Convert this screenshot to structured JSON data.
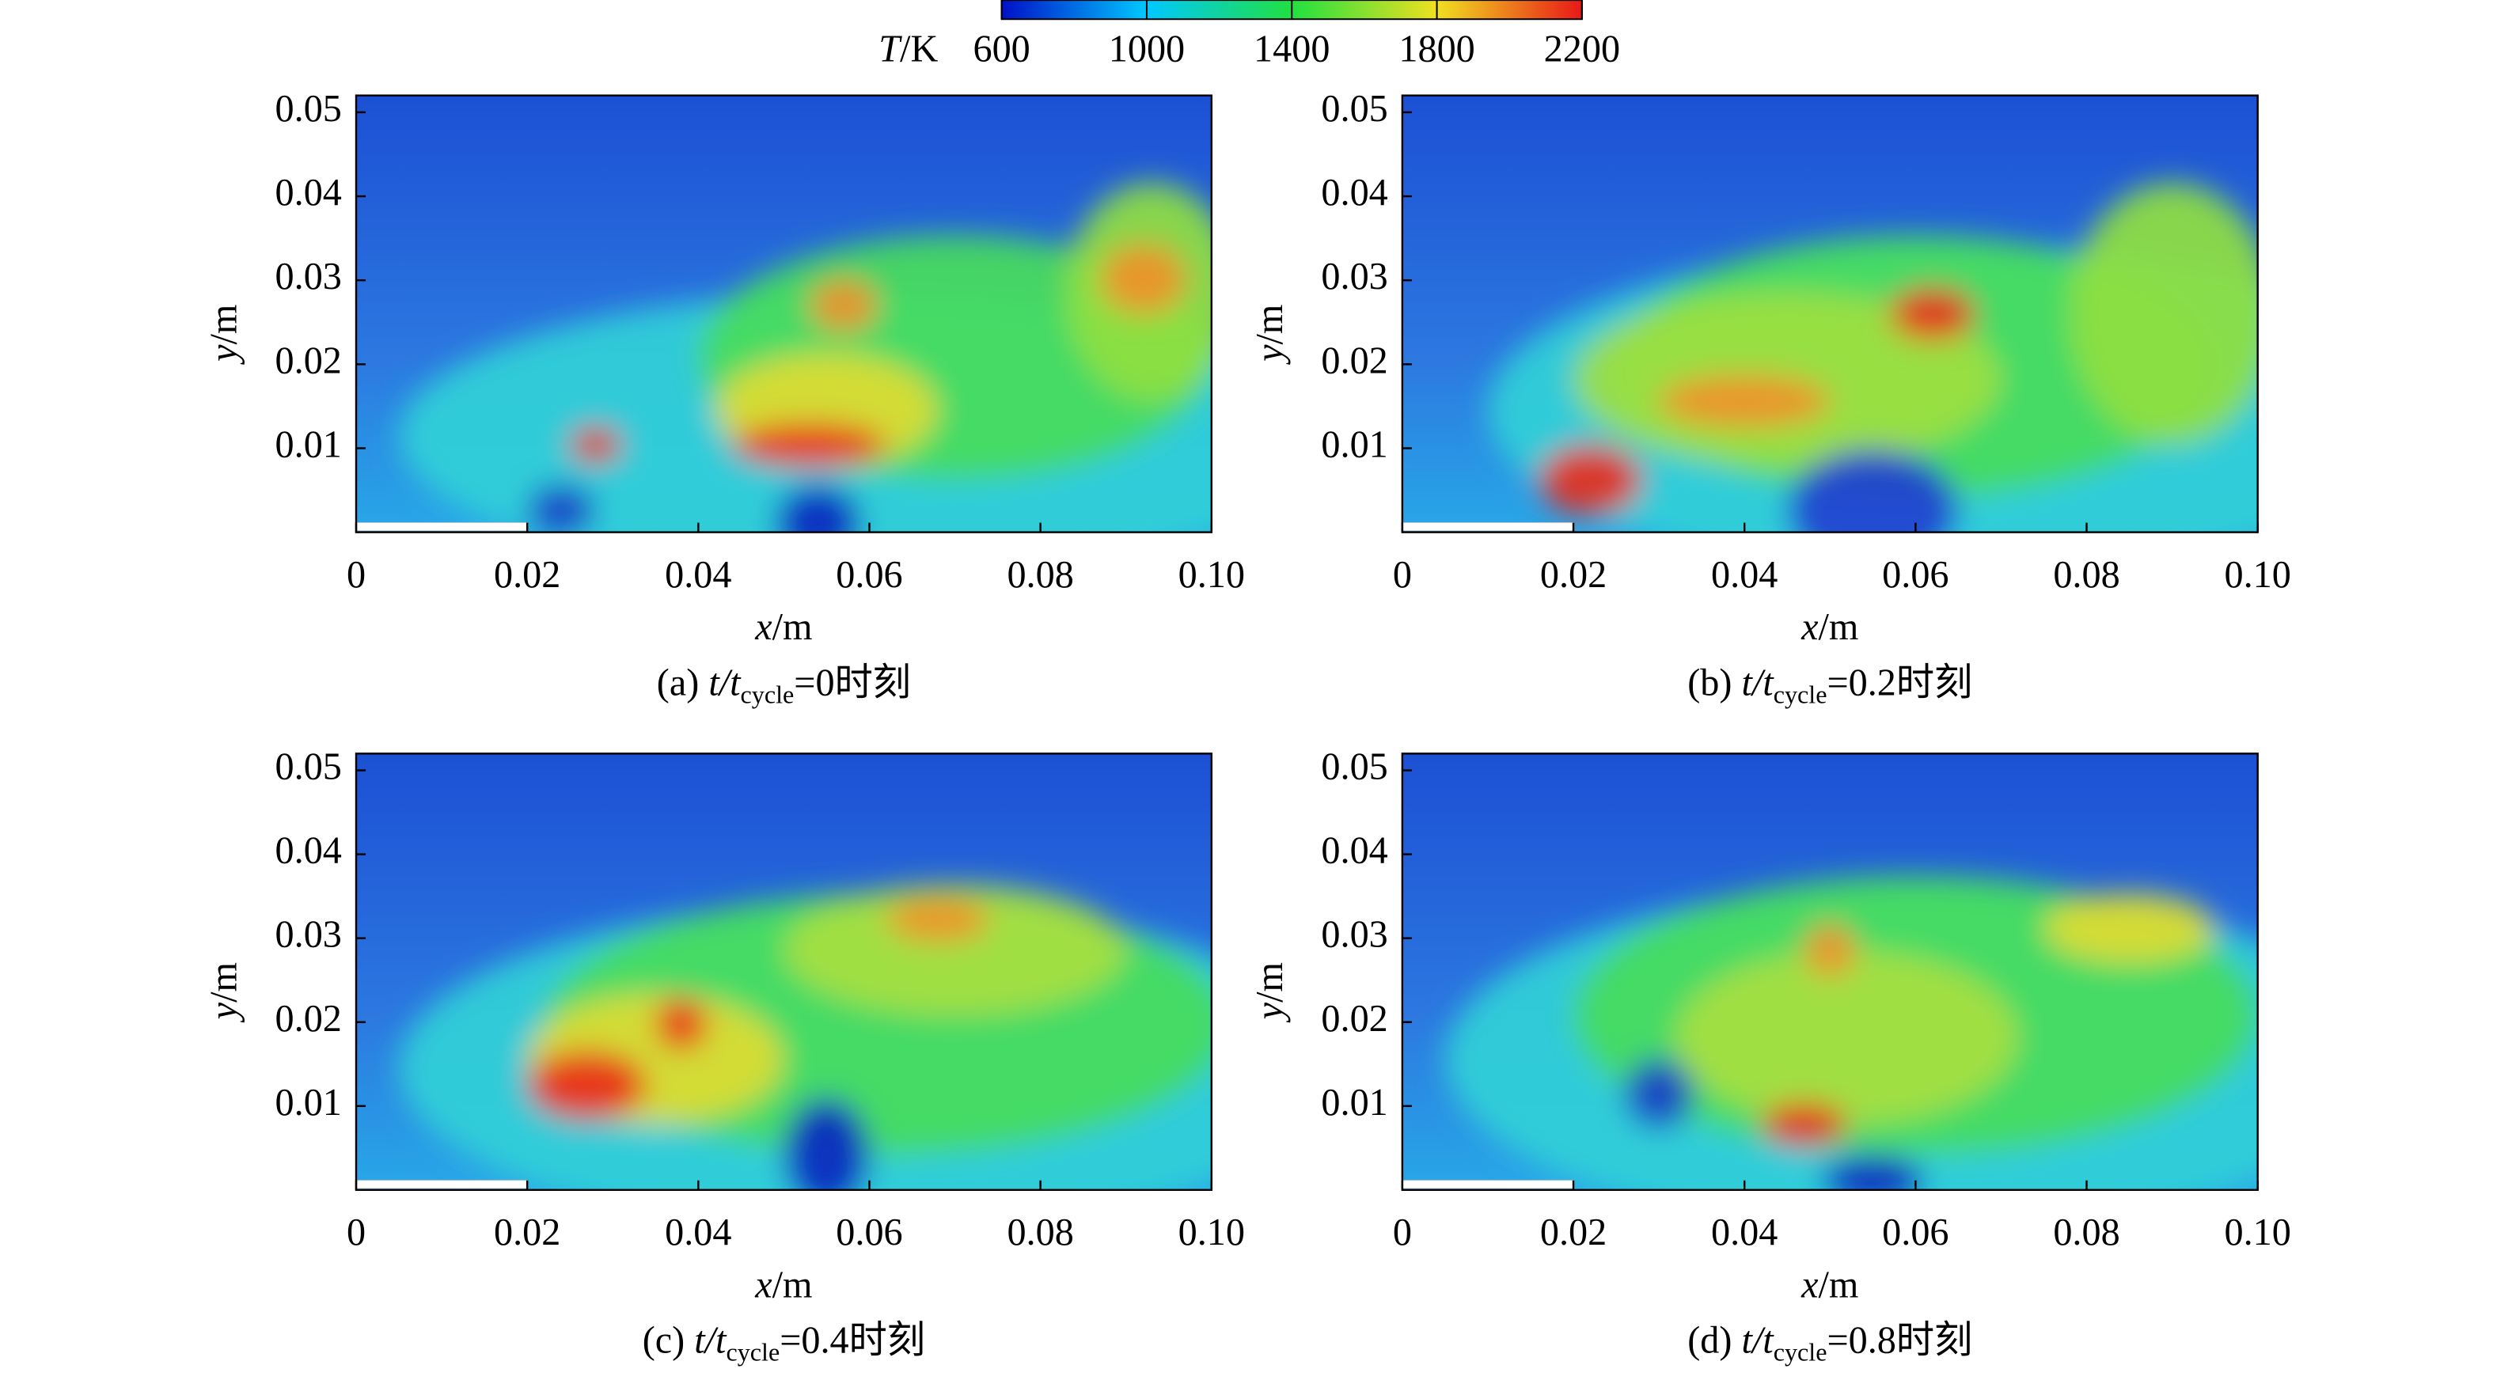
{
  "colorbar": {
    "label": {
      "var": "T",
      "unit": "/K"
    },
    "lim": [
      600,
      2200
    ],
    "ticks": [
      600,
      1000,
      1400,
      1800,
      2200
    ],
    "colormap": [
      "#0010c8",
      "#00c8ff",
      "#20e040",
      "#f0e020",
      "#e81818"
    ]
  },
  "chart_data": [
    {
      "type": "contour",
      "caption": {
        "prefix": "(a) ",
        "var": "t/t",
        "sub": "cycle",
        "suffix": "=0时刻"
      },
      "xlabel": {
        "var": "x",
        "unit": "/m"
      },
      "ylabel": {
        "var": "y",
        "unit": "/m"
      },
      "xlim": [
        0,
        0.1
      ],
      "ylim": [
        0,
        0.052
      ],
      "xticks": [
        0,
        0.02,
        0.04,
        0.06,
        0.08,
        {
          "value": 0.1,
          "label": "0.10"
        }
      ],
      "yticks": [
        0.01,
        0.02,
        0.03,
        0.04,
        0.05
      ]
    },
    {
      "type": "contour",
      "caption": {
        "prefix": "(b) ",
        "var": "t/t",
        "sub": "cycle",
        "suffix": "=0.2时刻"
      },
      "xlabel": {
        "var": "x",
        "unit": "/m"
      },
      "ylabel": {
        "var": "y",
        "unit": "/m"
      },
      "xlim": [
        0,
        0.1
      ],
      "ylim": [
        0,
        0.052
      ],
      "xticks": [
        0,
        0.02,
        0.04,
        0.06,
        0.08,
        {
          "value": 0.1,
          "label": "0.10"
        }
      ],
      "yticks": [
        0.01,
        0.02,
        0.03,
        0.04,
        0.05
      ]
    },
    {
      "type": "contour",
      "caption": {
        "prefix": "(c) ",
        "var": "t/t",
        "sub": "cycle",
        "suffix": "=0.4时刻"
      },
      "xlabel": {
        "var": "x",
        "unit": "/m"
      },
      "ylabel": {
        "var": "y",
        "unit": "/m"
      },
      "xlim": [
        0,
        0.1
      ],
      "ylim": [
        0,
        0.052
      ],
      "xticks": [
        0,
        0.02,
        0.04,
        0.06,
        0.08,
        {
          "value": 0.1,
          "label": "0.10"
        }
      ],
      "yticks": [
        0.01,
        0.02,
        0.03,
        0.04,
        0.05
      ]
    },
    {
      "type": "contour",
      "caption": {
        "prefix": "(d) ",
        "var": "t/t",
        "sub": "cycle",
        "suffix": "=0.8时刻"
      },
      "xlabel": {
        "var": "x",
        "unit": "/m"
      },
      "ylabel": {
        "var": "y",
        "unit": "/m"
      },
      "xlim": [
        0,
        0.1
      ],
      "ylim": [
        0,
        0.052
      ],
      "xticks": [
        0,
        0.02,
        0.04,
        0.06,
        0.08,
        {
          "value": 0.1,
          "label": "0.10"
        }
      ],
      "yticks": [
        0.01,
        0.02,
        0.03,
        0.04,
        0.05
      ]
    }
  ]
}
